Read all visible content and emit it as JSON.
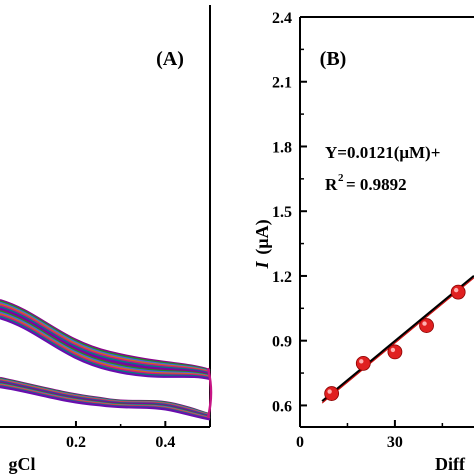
{
  "chart_data": [
    {
      "type": "line",
      "panel_label": "(A)",
      "xlabel_fragment": "gCl",
      "x_ticks": [
        "0.2",
        "0.4"
      ],
      "xlim": [
        0.03,
        0.5
      ],
      "series_note": "multiple overlapping cyclic voltammogram traces",
      "series_colors": [
        "#8b008b",
        "#228b22",
        "#4169e1",
        "#d2691e",
        "#c71585",
        "#008080",
        "#6a0dad"
      ]
    },
    {
      "type": "scatter",
      "panel_label": "(B)",
      "ylabel_italic": "I",
      "ylabel_unit": "(μA)",
      "xlabel_fragment": "Diff",
      "x_ticks": [
        "0",
        "30"
      ],
      "y_ticks": [
        "2.4",
        "2.1",
        "1.8",
        "1.5",
        "1.2",
        "0.9",
        "0.6"
      ],
      "xlim": [
        0,
        55
      ],
      "ylim": [
        0.5,
        2.4
      ],
      "points": [
        {
          "x": 10,
          "y": 0.655
        },
        {
          "x": 20,
          "y": 0.795
        },
        {
          "x": 30,
          "y": 0.848
        },
        {
          "x": 40,
          "y": 0.97
        },
        {
          "x": 50,
          "y": 1.125
        }
      ],
      "fit": {
        "slope": 0.0121,
        "intercept": 0.535
      },
      "equation_text": "Y=0.0121(μM)+",
      "r2_label": "R",
      "r2_sup": "2",
      "r2_value": "= 0.9892",
      "marker_color": "#e02020",
      "fit_color": "#000000"
    }
  ]
}
